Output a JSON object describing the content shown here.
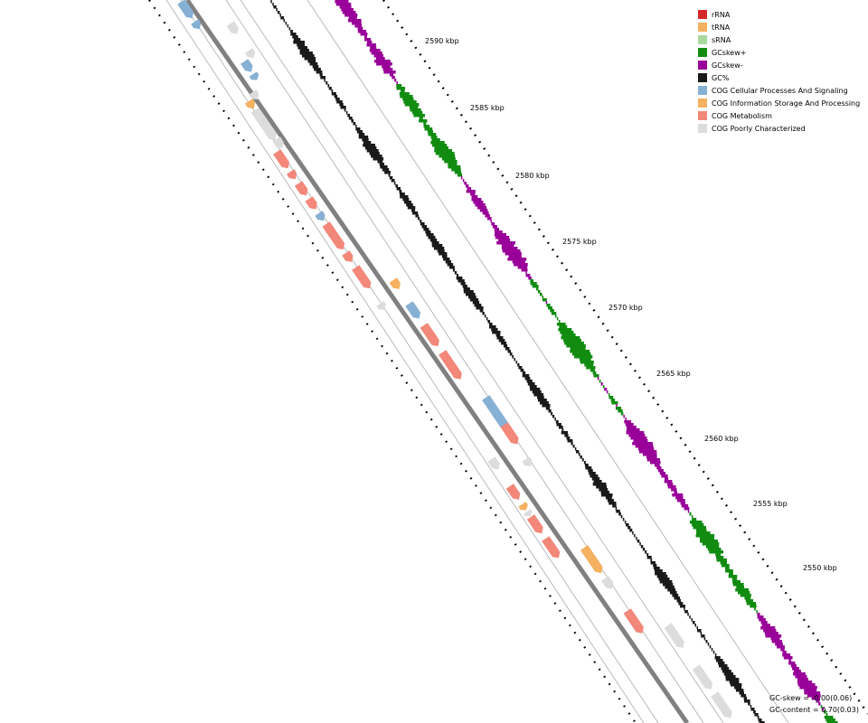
{
  "legend": {
    "items": [
      {
        "label": "rRNA",
        "color": "#d62728"
      },
      {
        "label": "tRNA",
        "color": "#f5b060"
      },
      {
        "label": "sRNA",
        "color": "#a8d8a0"
      },
      {
        "label": "GCskew+",
        "color": "#118c11"
      },
      {
        "label": "GCskew-",
        "color": "#990099"
      },
      {
        "label": "GC%",
        "color": "#1a1a1a"
      },
      {
        "label": "COG Cellular Processes And Signaling",
        "color": "#86b0d4"
      },
      {
        "label": "COG Information Storage And Processing",
        "color": "#f5b060"
      },
      {
        "label": "COG Metabolism",
        "color": "#f2877a"
      },
      {
        "label": "COG Poorly Characterized",
        "color": "#dcdcdc"
      }
    ]
  },
  "ticks": [
    {
      "label": "2590 kbp"
    },
    {
      "label": "2585 kbp"
    },
    {
      "label": "2580 kbp"
    },
    {
      "label": "2575 kbp"
    },
    {
      "label": "2570 kbp"
    },
    {
      "label": "2565 kbp"
    },
    {
      "label": "2560 kbp"
    },
    {
      "label": "2555 kbp"
    },
    {
      "label": "2550 kbp"
    }
  ],
  "stats": {
    "gc_skew": "GC-skew = -0.00(0.06)",
    "gc_content": "GC-content = 0.70(0.03)"
  },
  "colors": {
    "gc_skew_plus": "#118c11",
    "gc_skew_minus": "#990099",
    "gc_percent": "#1a1a1a",
    "cog_cellular": "#86b0d4",
    "cog_information": "#f5b060",
    "cog_metabolism": "#f2877a",
    "cog_poorly": "#dcdcdc",
    "backbone": "#808080"
  }
}
